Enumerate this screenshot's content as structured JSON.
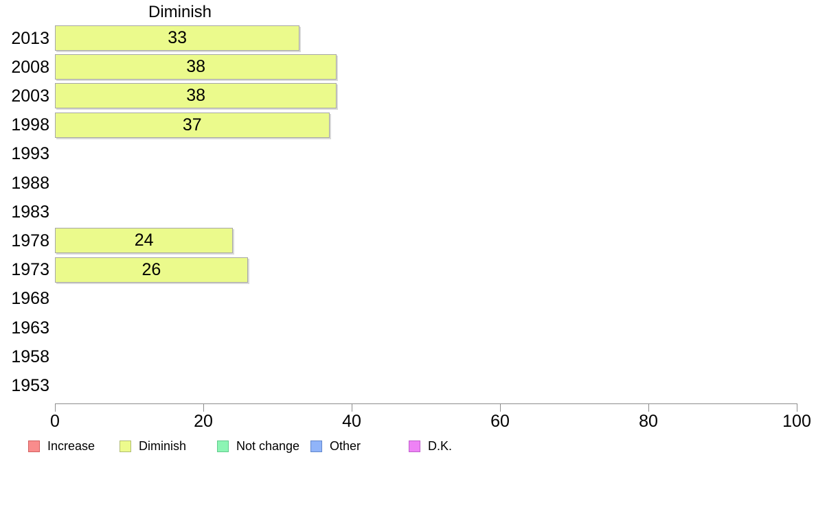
{
  "chart_data": {
    "type": "bar",
    "orientation": "horizontal",
    "title": "Diminish",
    "categories": [
      "2013",
      "2008",
      "2003",
      "1998",
      "1993",
      "1988",
      "1983",
      "1978",
      "1973",
      "1968",
      "1963",
      "1958",
      "1953"
    ],
    "values": [
      33,
      38,
      38,
      37,
      null,
      null,
      null,
      24,
      26,
      null,
      null,
      null,
      null
    ],
    "xlabel": "",
    "ylabel": "",
    "xlim": [
      0,
      100
    ],
    "x_ticks": [
      0,
      20,
      40,
      60,
      80,
      100
    ],
    "grid": "off",
    "bar_fill_color": "#ebfa8c",
    "bar_border_color": "#a6a6a6",
    "axis_color": "#8c8c8c",
    "legend_position": "bottom",
    "legend": [
      {
        "label": "Increase",
        "fill": "#f98c8c",
        "border": "#d25f5f"
      },
      {
        "label": "Diminish",
        "fill": "#edfb8d",
        "border": "#b0bc74"
      },
      {
        "label": "Not change",
        "fill": "#8cf5b4",
        "border": "#62c98c"
      },
      {
        "label": "Other",
        "fill": "#90b4f9",
        "border": "#6287cc"
      },
      {
        "label": "D.K.",
        "fill": "#ee82f5",
        "border": "#c05fcc"
      }
    ]
  }
}
